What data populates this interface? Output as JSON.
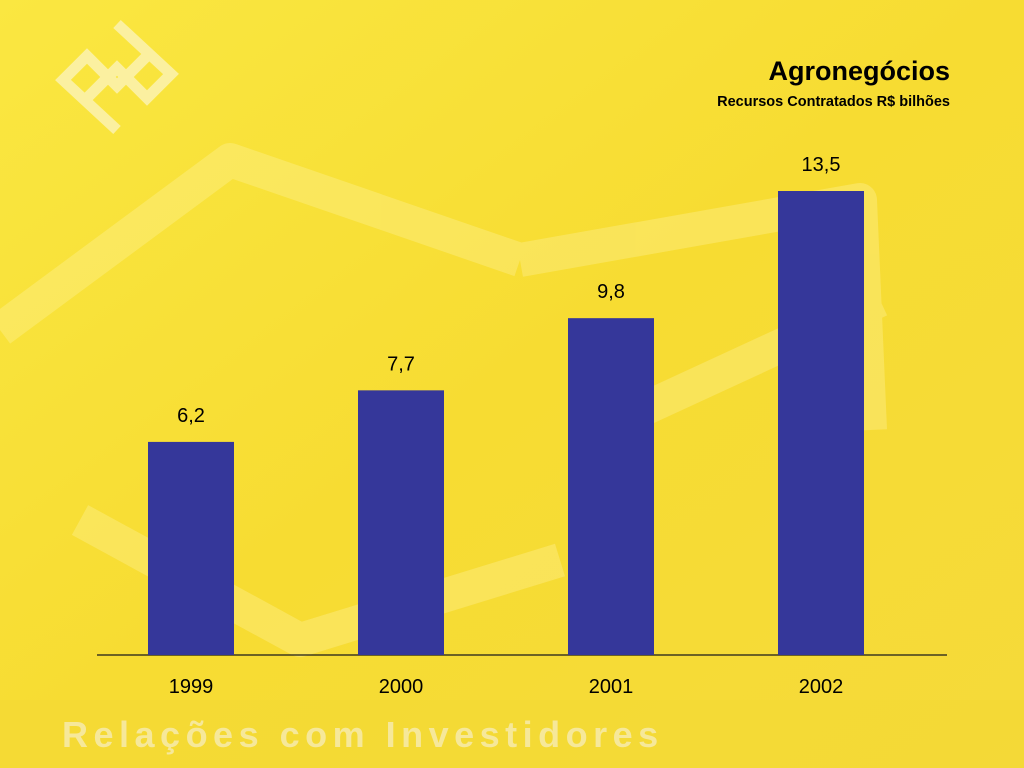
{
  "slide": {
    "title": "Agronegócios",
    "subtitle": "Recursos Contratados R$ bilhões",
    "footer": "Relações com Investidores"
  },
  "colors": {
    "background": "#f8e03a",
    "bar": "#35379a",
    "logo": "#fbf0a0"
  },
  "chart_data": {
    "type": "bar",
    "categories": [
      "1999",
      "2000",
      "2001",
      "2002"
    ],
    "values": [
      6.2,
      7.7,
      9.8,
      13.5
    ],
    "data_labels": [
      "6,2",
      "7,7",
      "9,8",
      "13,5"
    ],
    "title": "Agronegócios",
    "subtitle": "Recursos Contratados R$ bilhões",
    "xlabel": "",
    "ylabel": "",
    "ylim": [
      0,
      13.5
    ],
    "grid": false,
    "legend": "none"
  }
}
